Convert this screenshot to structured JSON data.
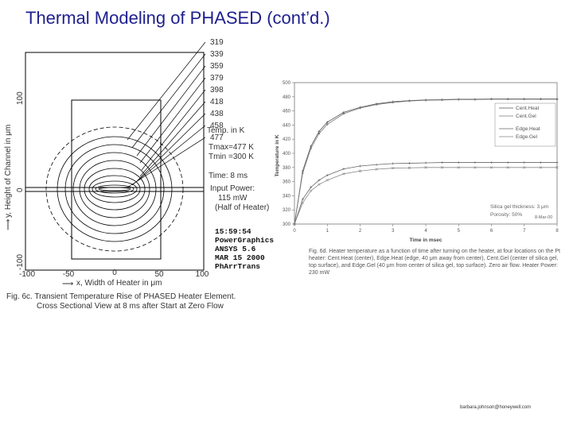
{
  "slide": {
    "title": "Thermal Modeling of PHASED (cont’d.)",
    "email": "barbara.johnson@honeywell.com"
  },
  "contour_plot": {
    "y_axis_label": "y, Height of Channel in μm",
    "x_axis_label": "x, Width of Heater in μm",
    "x_ticks": [
      "-100",
      "-50",
      "0",
      "50",
      "100"
    ],
    "y_ticks": [
      "100",
      "0",
      "-100"
    ],
    "contour_levels": [
      "319",
      "339",
      "359",
      "379",
      "398",
      "418",
      "438",
      "458",
      "477"
    ],
    "temp_unit": "Temp. in K",
    "tmax": "Tmax=477 K",
    "tmin": "Tmin =300 K",
    "time": "Time: 8 ms",
    "input_power": "Input Power:",
    "power_value": "115 mW",
    "power_note": "(Half of Heater)",
    "ansys_stamp": [
      "15:59:54",
      "PowerGraphics",
      "ANSYS 5.6",
      "MAR 15 2000",
      "PhArrTrans"
    ],
    "caption_line1": "Fig. 6c. Transient Temperature Rise of PHASED Heater Element.",
    "caption_line2": "Cross Sectional View at 8 ms after Start  at Zero Flow"
  },
  "chart_data": {
    "type": "line",
    "title": "",
    "xlabel": "Time in msec",
    "ylabel": "Temperature in K",
    "xlim": [
      0,
      8
    ],
    "ylim": [
      300,
      500
    ],
    "x_ticks": [
      "0",
      "1",
      "2",
      "3",
      "4",
      "5",
      "6",
      "7",
      "8"
    ],
    "y_ticks": [
      "300",
      "320",
      "340",
      "360",
      "380",
      "400",
      "420",
      "440",
      "460",
      "480",
      "500"
    ],
    "grid": false,
    "legend_position": "right",
    "legend_note": [
      "Silica gel thickness: 3 μm",
      "Porosity: 50%"
    ],
    "date_stamp": "8-Mar-00",
    "x": [
      0,
      0.25,
      0.5,
      0.75,
      1,
      1.5,
      2,
      2.5,
      3,
      3.5,
      4,
      4.5,
      5,
      5.5,
      6,
      6.5,
      7,
      7.5,
      8
    ],
    "series": [
      {
        "name": "Cent.Heat",
        "color": "#555555",
        "marker": "+",
        "values": [
          300,
          375,
          410,
          431,
          444,
          458,
          465,
          470,
          473,
          474.5,
          475.5,
          476,
          476.5,
          476.5,
          477,
          477,
          477,
          477,
          477
        ]
      },
      {
        "name": "Cent.Gel",
        "color": "#777777",
        "marker": "o",
        "values": [
          300,
          372,
          407,
          428,
          441,
          456,
          464,
          469,
          472,
          474,
          475,
          475.5,
          476,
          476,
          476.5,
          476.5,
          476.5,
          476.5,
          476.5
        ]
      },
      {
        "name": "Edge.Heat",
        "color": "#666666",
        "marker": "+",
        "values": [
          300,
          335,
          352,
          362,
          369,
          378,
          382,
          384,
          385.5,
          386,
          386.5,
          387,
          387,
          387,
          387,
          387,
          387,
          387,
          387
        ]
      },
      {
        "name": "Edge.Gel",
        "color": "#888888",
        "marker": "x",
        "values": [
          300,
          330,
          347,
          356,
          362,
          371,
          375,
          377.5,
          379,
          379.5,
          380,
          380,
          380,
          380,
          380,
          380,
          380,
          380,
          380
        ]
      }
    ],
    "caption": "Fig. 6d. Heater temperature as a function of time after turning on the heater, at four locations on the Pt heater: Cent.Heat (center), Edge.Heat (edge, 40 μm away from center), Cent.Gel (center of silica gel, top surface), and Edge.Gel (40 μm from center of silica gel, top surface). Zero air flow. Heater Power: 230 mW"
  }
}
